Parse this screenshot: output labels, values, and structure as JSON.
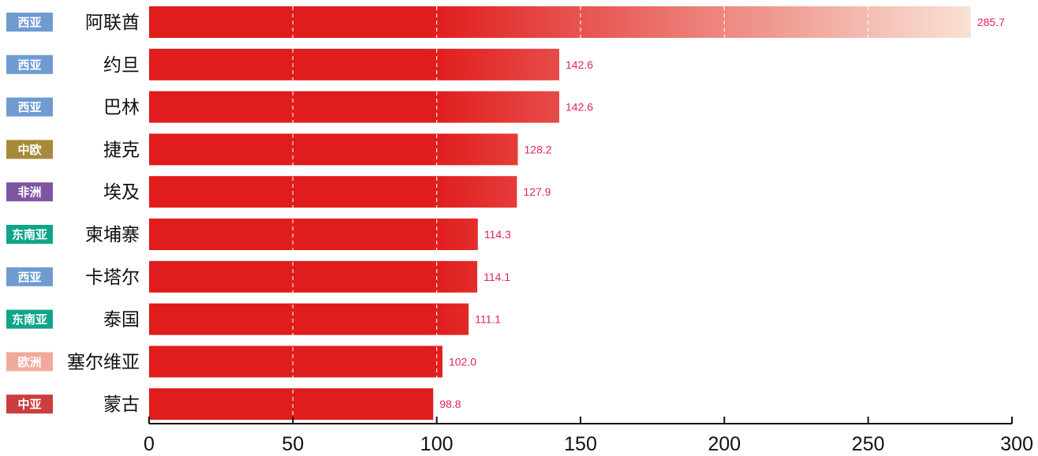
{
  "chart_data": {
    "type": "bar",
    "orientation": "horizontal",
    "categories": [
      "阿联酋",
      "约旦",
      "巴林",
      "捷克",
      "埃及",
      "柬埔寨",
      "卡塔尔",
      "泰国",
      "塞尔维亚",
      "蒙古"
    ],
    "regions": [
      "西亚",
      "西亚",
      "西亚",
      "中欧",
      "非洲",
      "东南亚",
      "西亚",
      "东南亚",
      "欧洲",
      "中亚"
    ],
    "values": [
      285.7,
      142.6,
      142.6,
      128.2,
      127.9,
      114.3,
      114.1,
      111.1,
      102.0,
      98.8
    ],
    "value_labels": [
      "285.7",
      "142.6",
      "142.6",
      "128.2",
      "127.9",
      "114.3",
      "114.1",
      "111.1",
      "102.0",
      "98.8"
    ],
    "xlim": [
      0,
      300
    ],
    "xticks": [
      "0",
      "50",
      "100",
      "150",
      "200",
      "250",
      "300"
    ],
    "grid": true,
    "region_colors": {
      "西亚": "#6f9bd1",
      "中欧": "#a8893c",
      "非洲": "#7d55a3",
      "东南亚": "#10a48a",
      "欧洲": "#f2a99c",
      "中亚": "#cc3d3d"
    },
    "bar_gradient": [
      "#e01c1c",
      "#e01c1c",
      "#f9e3d6"
    ],
    "value_label_color": "#e0245e"
  }
}
